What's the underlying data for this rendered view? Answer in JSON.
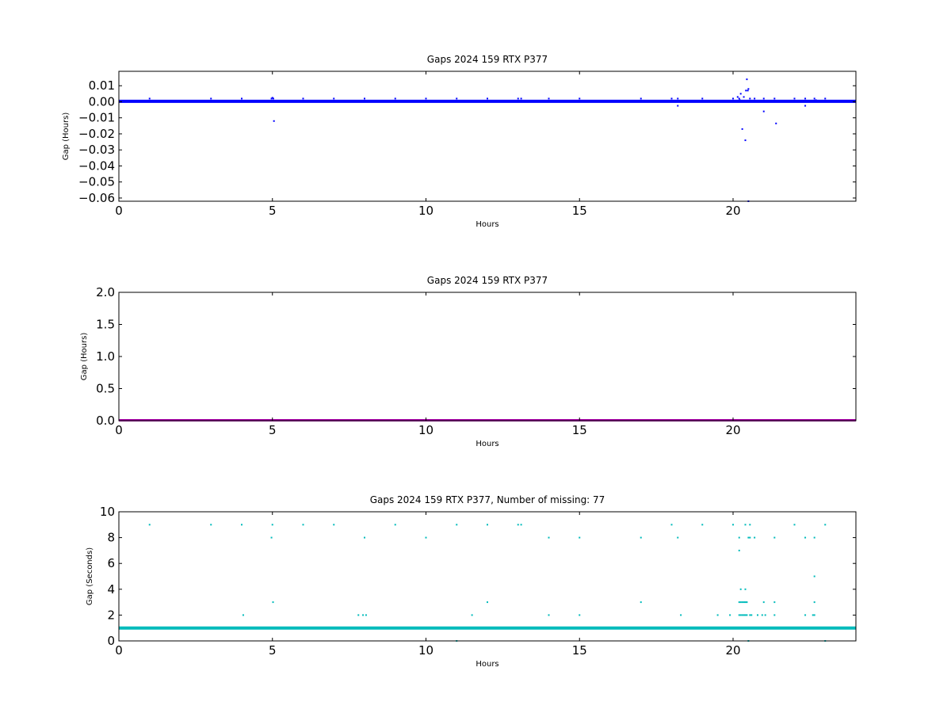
{
  "chart_data": [
    {
      "type": "scatter",
      "title": "Gaps 2024 159 RTX  P377",
      "xlabel": "Hours",
      "ylabel": "Gap (Hours)",
      "xlim": [
        0,
        24
      ],
      "ylim": [
        -0.062,
        0.019
      ],
      "xticks": [
        0,
        5,
        10,
        15,
        20
      ],
      "xtick_labels": [
        "0",
        "5",
        "10",
        "15",
        "20"
      ],
      "yticks": [
        -0.06,
        -0.05,
        -0.04,
        -0.03,
        -0.02,
        -0.01,
        0.0,
        0.01
      ],
      "ytick_labels": [
        "−0.06",
        "−0.05",
        "−0.04",
        "−0.03",
        "−0.02",
        "−0.01",
        "0.00",
        "0.01"
      ],
      "color": "#0000ff",
      "baseline": {
        "y": 0.0003
      },
      "x": [
        1,
        3,
        4,
        4.97,
        5.0,
        5.03,
        5.05,
        6,
        7,
        8,
        9,
        10,
        11,
        12,
        13,
        13.1,
        14,
        15,
        17,
        18,
        18.2,
        18.2,
        19,
        20,
        20.15,
        20.2,
        20.22,
        20.25,
        20.3,
        20.35,
        20.4,
        20.42,
        20.45,
        20.48,
        20.5,
        20.5,
        20.55,
        20.7,
        21,
        21.0,
        21.35,
        21.4,
        22,
        22.35,
        22.35,
        22.65,
        22.7,
        23
      ],
      "y": [
        0.002,
        0.002,
        0.002,
        0.002,
        0.0025,
        0.002,
        -0.012,
        0.002,
        0.002,
        0.002,
        0.002,
        0.002,
        0.002,
        0.002,
        0.002,
        0.002,
        0.002,
        0.002,
        0.002,
        0.002,
        0.002,
        -0.0025,
        0.002,
        0.002,
        0.003,
        0.002,
        0.001,
        0.005,
        -0.017,
        0.003,
        -0.024,
        0.007,
        0.014,
        0.007,
        0.008,
        -0.062,
        0.002,
        0.002,
        0.002,
        -0.006,
        0.002,
        -0.0135,
        0.002,
        0.002,
        -0.0025,
        0.002,
        0.001,
        0.002
      ]
    },
    {
      "type": "scatter",
      "title": "Gaps 2024 159 RTX  P377",
      "xlabel": "Hours",
      "ylabel": "Gap (Hours)",
      "xlim": [
        0,
        24
      ],
      "ylim": [
        0,
        2
      ],
      "xticks": [
        0,
        5,
        10,
        15,
        20
      ],
      "xtick_labels": [
        "0",
        "5",
        "10",
        "15",
        "20"
      ],
      "yticks": [
        0.0,
        0.5,
        1.0,
        1.5,
        2.0
      ],
      "ytick_labels": [
        "0.0",
        "0.5",
        "1.0",
        "1.5",
        "2.0"
      ],
      "color": "#aa00aa",
      "baseline": {
        "y": 0.0
      },
      "x": [],
      "y": []
    },
    {
      "type": "scatter",
      "title": "Gaps 2024 159 RTX  P377, Number of missing: 77",
      "xlabel": "Hours",
      "ylabel": "Gap (Seconds)",
      "xlim": [
        0,
        24
      ],
      "ylim": [
        0,
        10
      ],
      "xticks": [
        0,
        5,
        10,
        15,
        20
      ],
      "xtick_labels": [
        "0",
        "5",
        "10",
        "15",
        "20"
      ],
      "yticks": [
        0,
        2,
        4,
        6,
        8,
        10
      ],
      "ytick_labels": [
        "0",
        "2",
        "4",
        "6",
        "8",
        "10"
      ],
      "color": "#00bbbb",
      "baseline": {
        "y": 1
      },
      "x": [
        1,
        3,
        4,
        5,
        6,
        7,
        9,
        11,
        12,
        13,
        13.1,
        18,
        19,
        20,
        20.4,
        20.55,
        22,
        23,
        4.97,
        8,
        10,
        14,
        15,
        17,
        18.2,
        20.2,
        20.5,
        20.55,
        20.7,
        21.35,
        22.35,
        22.65,
        20.2,
        22.65,
        20.25,
        20.4,
        20.2,
        20.25,
        20.3,
        20.35,
        20.4,
        20.45,
        21,
        21.35,
        22.65,
        12,
        17,
        5.02,
        4.05,
        7.8,
        7.95,
        8.05,
        11.5,
        14,
        15,
        18.3,
        19.5,
        19.9,
        20.2,
        20.25,
        20.3,
        20.35,
        20.4,
        20.45,
        20.55,
        20.6,
        20.8,
        20.95,
        21.05,
        21.35,
        22.35,
        22.6,
        22.65,
        11,
        20.5,
        23
      ],
      "y": [
        9,
        9,
        9,
        9,
        9,
        9,
        9,
        9,
        9,
        9,
        9,
        9,
        9,
        9,
        9,
        9,
        9,
        9,
        8,
        8,
        8,
        8,
        8,
        8,
        8,
        8,
        8,
        8,
        8,
        8,
        8,
        8,
        7,
        5,
        4,
        4,
        3,
        3,
        3,
        3,
        3,
        3,
        3,
        3,
        3,
        3,
        3,
        3,
        2,
        2,
        2,
        2,
        2,
        2,
        2,
        2,
        2,
        2,
        2,
        2,
        2,
        2,
        2,
        2,
        2,
        2,
        2,
        2,
        2,
        2,
        2,
        2,
        2,
        0,
        0,
        0
      ]
    }
  ]
}
